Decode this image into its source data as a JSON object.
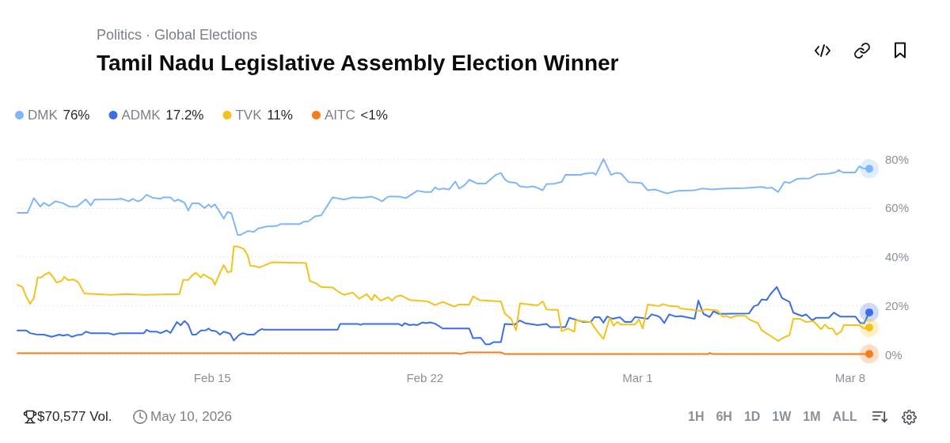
{
  "chart_data": {
    "type": "line",
    "title": "Tamil Nadu Legislative Assembly Election Winner",
    "subtitle": "Politics · Global Elections",
    "annotations": [
      "$70,577 Vol.",
      "May 10, 2026",
      "1H",
      "6H",
      "1D",
      "1W",
      "1M",
      "ALL"
    ],
    "xlim": [
      "2026-02-08T14:00",
      "2026-03-08T15:00"
    ],
    "xticks": [
      {
        "value": "2026-02-15",
        "label": "Feb 15"
      },
      {
        "value": "2026-02-22",
        "label": "Feb 22"
      },
      {
        "value": "2026-03-01",
        "label": "Mar 1"
      },
      {
        "value": "2026-03-08",
        "label": "Mar 8"
      }
    ],
    "ylim": [
      0,
      80
    ],
    "yticks": [
      {
        "value": 0,
        "label": "0%"
      },
      {
        "value": 20,
        "label": "20%"
      },
      {
        "value": 40,
        "label": "40%"
      },
      {
        "value": 60,
        "label": "60%"
      },
      {
        "value": 80,
        "label": "80%"
      }
    ],
    "grid": "y",
    "legend": "top left",
    "marker": "none",
    "line_style": "solid",
    "series": [
      {
        "name": "DMK 76%",
        "color": "#80b8f7",
        "x": [
          "2026-02-08T14:00",
          "2026-02-08T22:00",
          "2026-02-09T03:00",
          "2026-02-09T08:00",
          "2026-02-09T11:00",
          "2026-02-09T15:00",
          "2026-02-09T20:00",
          "2026-02-10T02:00",
          "2026-02-10T07:00",
          "2026-02-10T13:00",
          "2026-02-10T20:00",
          "2026-02-11T00:00",
          "2026-02-11T03:00",
          "2026-02-11T20:00",
          "2026-02-12T00:00",
          "2026-02-12T06:00",
          "2026-02-12T09:00",
          "2026-02-12T13:00",
          "2026-02-12T16:00",
          "2026-02-12T20:00",
          "2026-02-13T01:00",
          "2026-02-13T07:00",
          "2026-02-13T09:00",
          "2026-02-13T15:00",
          "2026-02-13T18:00",
          "2026-02-13T21:00",
          "2026-02-14T02:00",
          "2026-02-14T05:00",
          "2026-02-14T08:00",
          "2026-02-14T13:00",
          "2026-02-14T18:00",
          "2026-02-14T21:00",
          "2026-02-14T23:00",
          "2026-02-15T02:00",
          "2026-02-15T04:00",
          "2026-02-15T09:00",
          "2026-02-15T12:00",
          "2026-02-15T15:00",
          "2026-02-15T20:00",
          "2026-02-15T22:00",
          "2026-02-16T04:00",
          "2026-02-16T09:00",
          "2026-02-16T12:00",
          "2026-02-16T19:00",
          "2026-02-17T03:00",
          "2026-02-17T06:00",
          "2026-02-17T21:00",
          "2026-02-18T00:00",
          "2026-02-18T04:00",
          "2026-02-18T09:00",
          "2026-02-18T14:00",
          "2026-02-18T23:00",
          "2026-02-19T08:00",
          "2026-02-19T15:00",
          "2026-02-19T22:00",
          "2026-02-20T06:00",
          "2026-02-20T11:00",
          "2026-02-20T14:00",
          "2026-02-20T19:00",
          "2026-02-21T03:00",
          "2026-02-21T09:00",
          "2026-02-21T18:00",
          "2026-02-22T00:00",
          "2026-02-22T05:00",
          "2026-02-22T08:00",
          "2026-02-22T11:00",
          "2026-02-22T14:00",
          "2026-02-22T19:00",
          "2026-02-23T00:00",
          "2026-02-23T03:00",
          "2026-02-23T07:00",
          "2026-02-23T11:00",
          "2026-02-23T17:00",
          "2026-02-24T00:00",
          "2026-02-24T08:00",
          "2026-02-24T12:00",
          "2026-02-24T15:00",
          "2026-02-24T18:00",
          "2026-02-25T00:00",
          "2026-02-25T03:00",
          "2026-02-25T09:00",
          "2026-02-25T13:00",
          "2026-02-25T16:00",
          "2026-02-25T21:00",
          "2026-02-26T00:00",
          "2026-02-26T06:00",
          "2026-02-26T12:00",
          "2026-02-26T15:00",
          "2026-02-27T03:00",
          "2026-02-27T06:00",
          "2026-02-27T13:00",
          "2026-02-27T15:00",
          "2026-02-27T21:00",
          "2026-02-28T00:00",
          "2026-02-28T03:00",
          "2026-02-28T07:00",
          "2026-02-28T11:00",
          "2026-02-28T17:00",
          "2026-03-01T03:00",
          "2026-03-01T08:00",
          "2026-03-01T14:00",
          "2026-03-01T23:00",
          "2026-03-02T08:00",
          "2026-03-02T21:00",
          "2026-03-03T03:00",
          "2026-03-03T11:00",
          "2026-03-03T22:00",
          "2026-03-04T13:00",
          "2026-03-05T02:00",
          "2026-03-05T06:00",
          "2026-03-05T10:00",
          "2026-03-05T15:00",
          "2026-03-05T20:00",
          "2026-03-06T00:00",
          "2026-03-06T06:00",
          "2026-03-06T16:00",
          "2026-03-06T22:00",
          "2026-03-07T07:00",
          "2026-03-07T12:00",
          "2026-03-07T15:00",
          "2026-03-07T18:00",
          "2026-03-08T04:00",
          "2026-03-08T07:00",
          "2026-03-08T10:00",
          "2026-03-08T15:00"
        ],
        "values": [
          58.0,
          58.0,
          64.0,
          60.5,
          62.1,
          60.8,
          62.7,
          61.9,
          60.5,
          60.5,
          63.5,
          61.0,
          63.4,
          63.5,
          63.7,
          62.7,
          63.7,
          62.7,
          63.2,
          65.4,
          64.1,
          63.7,
          64.3,
          64.3,
          62.7,
          63.4,
          62.1,
          58.9,
          61.9,
          61.9,
          59.9,
          61.4,
          60.3,
          61.4,
          59.9,
          55.6,
          58.3,
          57.8,
          48.9,
          48.9,
          50.5,
          50.2,
          51.5,
          52.4,
          52.6,
          53.4,
          53.4,
          54.3,
          54.5,
          56.5,
          56.9,
          64.3,
          63.4,
          64.3,
          64.1,
          64.6,
          63.5,
          62.7,
          64.6,
          64.6,
          64.0,
          67.0,
          66.5,
          66.5,
          68.4,
          67.5,
          67.9,
          67.5,
          70.8,
          67.9,
          69.2,
          71.5,
          70.0,
          70.0,
          73.5,
          74.3,
          71.7,
          70.6,
          70.2,
          68.8,
          68.4,
          68.8,
          68.4,
          67.2,
          69.7,
          69.9,
          70.6,
          73.5,
          73.5,
          74.0,
          74.3,
          73.5,
          80.0,
          76.7,
          73.5,
          74.3,
          74.0,
          70.5,
          70.2,
          67.2,
          67.5,
          65.9,
          67.0,
          67.2,
          67.9,
          67.5,
          67.9,
          68.1,
          68.6,
          68.1,
          68.3,
          66.5,
          70.6,
          70.2,
          71.9,
          72.1,
          73.7,
          74.0,
          74.5,
          75.5,
          74.5,
          74.5,
          77.0,
          76.2,
          76
        ]
      },
      {
        "name": "ADMK 17.2%",
        "color": "#3b6fe6",
        "x": [
          "2026-02-08T14:00",
          "2026-02-08T21:00",
          "2026-02-09T00:00",
          "2026-02-09T05:00",
          "2026-02-09T11:00",
          "2026-02-09T17:00",
          "2026-02-09T23:00",
          "2026-02-10T02:00",
          "2026-02-10T06:00",
          "2026-02-10T09:00",
          "2026-02-10T13:00",
          "2026-02-10T17:00",
          "2026-02-10T20:00",
          "2026-02-11T00:00",
          "2026-02-11T14:00",
          "2026-02-11T18:00",
          "2026-02-11T23:00",
          "2026-02-12T18:00",
          "2026-02-12T20:00",
          "2026-02-12T23:00",
          "2026-02-13T04:00",
          "2026-02-13T07:00",
          "2026-02-13T12:00",
          "2026-02-13T15:00",
          "2026-02-13T20:00",
          "2026-02-13T23:00",
          "2026-02-14T02:00",
          "2026-02-14T05:00",
          "2026-02-14T08:00",
          "2026-02-14T11:00",
          "2026-02-14T15:00",
          "2026-02-14T19:00",
          "2026-02-14T21:00",
          "2026-02-14T23:00",
          "2026-02-15T03:00",
          "2026-02-15T06:00",
          "2026-02-15T09:00",
          "2026-02-15T14:00",
          "2026-02-15T17:00",
          "2026-02-15T21:00",
          "2026-02-16T00:00",
          "2026-02-16T04:00",
          "2026-02-16T09:00",
          "2026-02-16T12:00",
          "2026-02-16T15:00",
          "2026-02-16T17:00",
          "2026-02-19T03:00",
          "2026-02-19T05:00",
          "2026-02-19T19:00",
          "2026-02-19T21:00",
          "2026-02-19T23:00",
          "2026-02-21T03:00",
          "2026-02-21T06:00",
          "2026-02-21T08:00",
          "2026-02-21T12:00",
          "2026-02-21T15:00",
          "2026-02-21T18:00",
          "2026-02-21T22:00",
          "2026-02-22T01:00",
          "2026-02-22T04:00",
          "2026-02-22T08:00",
          "2026-02-22T14:00",
          "2026-02-23T11:00",
          "2026-02-23T14:00",
          "2026-02-23T20:00",
          "2026-02-24T00:00",
          "2026-02-24T03:00",
          "2026-02-24T06:00",
          "2026-02-24T12:00",
          "2026-02-24T15:00",
          "2026-02-24T23:00",
          "2026-02-25T03:00",
          "2026-02-25T07:00",
          "2026-02-25T17:00",
          "2026-02-26T00:00",
          "2026-02-26T03:00",
          "2026-02-26T15:00",
          "2026-02-26T18:00",
          "2026-02-26T23:00",
          "2026-02-27T05:00",
          "2026-02-27T11:00",
          "2026-02-27T14:00",
          "2026-02-27T18:00",
          "2026-02-27T21:00",
          "2026-02-28T00:00",
          "2026-02-28T04:00",
          "2026-02-28T10:00",
          "2026-02-28T14:00",
          "2026-02-28T19:00",
          "2026-02-28T22:00",
          "2026-03-01T08:00",
          "2026-03-01T11:00",
          "2026-03-01T16:00",
          "2026-03-01T18:00",
          "2026-03-01T21:00",
          "2026-03-02T01:00",
          "2026-03-02T06:00",
          "2026-03-02T10:00",
          "2026-03-02T21:00",
          "2026-03-03T00:00",
          "2026-03-03T04:00",
          "2026-03-03T09:00",
          "2026-03-03T12:00",
          "2026-03-03T16:00",
          "2026-03-04T16:00",
          "2026-03-04T20:00",
          "2026-03-04T23:00",
          "2026-03-05T02:00",
          "2026-03-05T06:00",
          "2026-03-05T09:00",
          "2026-03-05T14:00",
          "2026-03-05T18:00",
          "2026-03-06T00:00",
          "2026-03-06T03:00",
          "2026-03-06T10:00",
          "2026-03-06T13:00",
          "2026-03-06T18:00",
          "2026-03-06T21:00",
          "2026-03-07T07:00",
          "2026-03-07T11:00",
          "2026-03-07T16:00",
          "2026-03-08T04:00",
          "2026-03-08T08:00",
          "2026-03-08T11:00",
          "2026-03-08T15:00"
        ],
        "values": [
          9.8,
          9.8,
          8.7,
          8.2,
          8.1,
          7.2,
          8.1,
          7.7,
          8.1,
          7.2,
          7.9,
          8.1,
          9.3,
          8.7,
          8.7,
          8.1,
          8.7,
          8.7,
          10.1,
          9.3,
          9.3,
          8.7,
          9.8,
          8.8,
          13.3,
          11.9,
          13.7,
          12.2,
          8.1,
          8.1,
          9.8,
          9.9,
          10.6,
          9.8,
          9.5,
          8.1,
          9.3,
          8.5,
          5.7,
          7.9,
          8.7,
          8.1,
          8.1,
          9.5,
          10.4,
          10.1,
          10.1,
          12.5,
          12.5,
          12.1,
          12.5,
          12.5,
          11.7,
          12.8,
          12.0,
          12.2,
          12.0,
          13.1,
          12.8,
          13.1,
          12.6,
          10.6,
          10.6,
          6.6,
          6.8,
          4.1,
          4.1,
          5.0,
          5.0,
          12.5,
          12.2,
          13.9,
          12.8,
          12.0,
          12.5,
          11.2,
          11.2,
          15.0,
          14.2,
          13.3,
          13.3,
          15.3,
          15.2,
          13.0,
          15.5,
          14.6,
          15.2,
          13.3,
          13.3,
          15.3,
          14.6,
          16.4,
          15.7,
          15.0,
          12.8,
          16.4,
          15.5,
          15.7,
          14.6,
          22.0,
          16.6,
          15.3,
          17.7,
          16.6,
          16.8,
          19.8,
          20.2,
          22.5,
          22.3,
          24.7,
          27.6,
          23.1,
          21.5,
          17.1,
          15.7,
          16.4,
          13.9,
          15.0,
          15.0,
          17.1,
          15.5,
          15.5,
          12.8,
          12.8,
          17.2
        ]
      },
      {
        "name": "TVK 11%",
        "color": "#f3c21b",
        "x": [
          "2026-02-08T14:00",
          "2026-02-08T18:00",
          "2026-02-08T21:00",
          "2026-02-09T00:00",
          "2026-02-09T03:00",
          "2026-02-09T06:00",
          "2026-02-09T09:00",
          "2026-02-09T11:00",
          "2026-02-09T15:00",
          "2026-02-09T18:00",
          "2026-02-09T21:00",
          "2026-02-10T01:00",
          "2026-02-10T03:00",
          "2026-02-10T06:00",
          "2026-02-10T10:00",
          "2026-02-10T14:00",
          "2026-02-10T19:00",
          "2026-02-11T16:00",
          "2026-02-12T04:00",
          "2026-02-12T18:00",
          "2026-02-13T22:00",
          "2026-02-14T01:00",
          "2026-02-14T05:00",
          "2026-02-14T08:00",
          "2026-02-14T11:00",
          "2026-02-14T15:00",
          "2026-02-14T17:00",
          "2026-02-14T21:00",
          "2026-02-15T00:00",
          "2026-02-15T02:00",
          "2026-02-15T06:00",
          "2026-02-15T09:00",
          "2026-02-15T12:00",
          "2026-02-15T15:00",
          "2026-02-15T17:00",
          "2026-02-15T20:00",
          "2026-02-16T01:00",
          "2026-02-16T04:00",
          "2026-02-16T06:00",
          "2026-02-16T10:00",
          "2026-02-16T13:00",
          "2026-02-16T17:00",
          "2026-02-16T23:00",
          "2026-02-18T02:00",
          "2026-02-18T05:00",
          "2026-02-18T10:00",
          "2026-02-18T14:00",
          "2026-02-18T23:00",
          "2026-02-19T04:00",
          "2026-02-19T08:00",
          "2026-02-19T15:00",
          "2026-02-19T20:00",
          "2026-02-20T02:00",
          "2026-02-20T06:00",
          "2026-02-20T08:00",
          "2026-02-20T13:00",
          "2026-02-20T19:00",
          "2026-02-20T22:00",
          "2026-02-21T01:00",
          "2026-02-21T05:00",
          "2026-02-21T12:00",
          "2026-02-21T18:00",
          "2026-02-22T02:00",
          "2026-02-22T08:00",
          "2026-02-22T14:00",
          "2026-02-22T23:00",
          "2026-02-23T03:00",
          "2026-02-23T11:00",
          "2026-02-23T14:00",
          "2026-02-23T19:00",
          "2026-02-24T12:00",
          "2026-02-24T15:00",
          "2026-02-24T20:00",
          "2026-02-25T00:00",
          "2026-02-25T03:00",
          "2026-02-25T17:00",
          "2026-02-25T21:00",
          "2026-02-26T00:00",
          "2026-02-26T09:00",
          "2026-02-26T12:00",
          "2026-02-26T17:00",
          "2026-02-26T22:00",
          "2026-02-26T23:00",
          "2026-02-27T11:00",
          "2026-02-27T16:00",
          "2026-02-27T21:00",
          "2026-02-28T02:00",
          "2026-02-28T05:00",
          "2026-02-28T08:00",
          "2026-02-28T11:00",
          "2026-02-28T22:00",
          "2026-03-01T01:00",
          "2026-03-01T04:00",
          "2026-03-01T08:00",
          "2026-03-01T17:00",
          "2026-03-01T20:00",
          "2026-03-02T01:00",
          "2026-03-02T08:00",
          "2026-03-02T10:00",
          "2026-03-02T18:00",
          "2026-03-03T02:00",
          "2026-03-03T06:00",
          "2026-03-03T15:00",
          "2026-03-03T19:00",
          "2026-03-03T22:00",
          "2026-03-04T01:00",
          "2026-03-04T06:00",
          "2026-03-04T13:00",
          "2026-03-04T16:00",
          "2026-03-04T23:00",
          "2026-03-05T02:00",
          "2026-03-05T09:00",
          "2026-03-05T15:00",
          "2026-03-05T19:00",
          "2026-03-06T00:00",
          "2026-03-06T03:00",
          "2026-03-06T08:00",
          "2026-03-06T13:00",
          "2026-03-06T19:00",
          "2026-03-07T01:00",
          "2026-03-07T04:00",
          "2026-03-07T07:00",
          "2026-03-07T10:00",
          "2026-03-07T13:00",
          "2026-03-07T17:00",
          "2026-03-07T19:00",
          "2026-03-08T07:00",
          "2026-03-08T11:00",
          "2026-03-08T15:00"
        ],
        "values": [
          28.5,
          27.6,
          23.6,
          20.7,
          23.1,
          31.5,
          31.5,
          32.5,
          33.6,
          31.8,
          29.4,
          30.1,
          31.8,
          30.4,
          30.7,
          29.6,
          24.9,
          24.4,
          24.7,
          24.4,
          24.7,
          30.5,
          30.5,
          32.3,
          33.4,
          31.5,
          32.8,
          31.5,
          30.7,
          28.5,
          33.4,
          36.6,
          33.7,
          33.9,
          44.2,
          44.2,
          43.1,
          40.4,
          36.3,
          36.1,
          35.6,
          36.4,
          37.7,
          37.4,
          30.1,
          29.1,
          27.6,
          27.4,
          25.5,
          24.4,
          25.3,
          22.8,
          24.7,
          22.2,
          24.4,
          22.0,
          23.4,
          22.0,
          23.6,
          24.2,
          22.3,
          22.0,
          21.7,
          20.2,
          21.5,
          19.6,
          20.4,
          20.4,
          23.8,
          22.2,
          21.7,
          16.8,
          14.6,
          9.9,
          20.9,
          20.1,
          21.7,
          18.4,
          18.2,
          9.5,
          10.6,
          9.3,
          13.9,
          13.3,
          9.5,
          6.3,
          15.0,
          11.7,
          13.3,
          12.2,
          12.2,
          14.4,
          10.6,
          20.4,
          19.8,
          20.6,
          19.8,
          19.6,
          18.8,
          18.4,
          17.7,
          18.5,
          18.0,
          15.5,
          15.8,
          15.0,
          15.8,
          15.8,
          14.4,
          12.8,
          9.9,
          7.6,
          5.5,
          6.8,
          7.9,
          14.6,
          14.6,
          13.3,
          13.6,
          10.3,
          12.2,
          10.6,
          10.6,
          8.1,
          9.5,
          12.0,
          12.0,
          10.6,
          11
        ]
      },
      {
        "name": "AITC <1%",
        "color": "#f27f1b",
        "x": [
          "2026-02-08T14:00",
          "2026-02-23T01:00",
          "2026-02-23T04:00",
          "2026-02-23T10:00",
          "2026-02-24T12:00",
          "2026-02-24T15:00",
          "2026-03-03T08:00",
          "2026-03-03T09:00",
          "2026-03-03T11:00",
          "2026-03-08T15:00"
        ],
        "values": [
          0.5,
          0.5,
          0.2,
          0.8,
          0.8,
          0.2,
          0.2,
          0.6,
          0.2,
          0.2
        ]
      }
    ]
  }
}
